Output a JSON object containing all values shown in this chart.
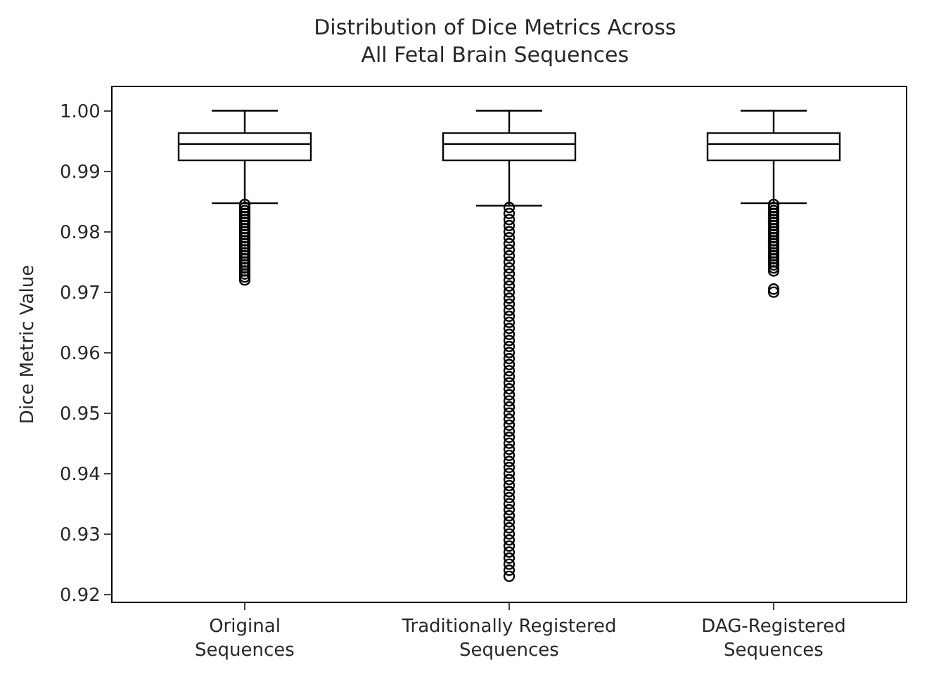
{
  "chart_data": {
    "type": "box",
    "title": "Distribution of Dice Metrics Across\nAll Fetal Brain Sequences",
    "ylabel": "Dice Metric Value",
    "categories": [
      "Original\nSequences",
      "Traditionally Registered\nSequences",
      "DAG-Registered\nSequences"
    ],
    "ylim": [
      0.9188,
      1.0039
    ],
    "yticks": [
      {
        "value": 0.92,
        "label": "0.92"
      },
      {
        "value": 0.93,
        "label": "0.93"
      },
      {
        "value": 0.94,
        "label": "0.94"
      },
      {
        "value": 0.95,
        "label": "0.95"
      },
      {
        "value": 0.96,
        "label": "0.96"
      },
      {
        "value": 0.97,
        "label": "0.97"
      },
      {
        "value": 0.98,
        "label": "0.98"
      },
      {
        "value": 0.99,
        "label": "0.99"
      },
      {
        "value": 1.0,
        "label": "1.00"
      }
    ],
    "marker": "circle",
    "color": "#000000",
    "boxes": [
      {
        "low": 0.9847,
        "q1": 0.9918,
        "median": 0.9945,
        "q3": 0.9963,
        "high": 1.0,
        "outliers": [
          0.9845,
          0.984,
          0.9835,
          0.983,
          0.9825,
          0.982,
          0.9815,
          0.981,
          0.9805,
          0.98,
          0.9795,
          0.979,
          0.9785,
          0.978,
          0.9775,
          0.977,
          0.9765,
          0.976,
          0.9755,
          0.975,
          0.9745,
          0.974,
          0.9735,
          0.973,
          0.9725,
          0.972
        ]
      },
      {
        "low": 0.9843,
        "q1": 0.9918,
        "median": 0.9945,
        "q3": 0.9963,
        "high": 1.0,
        "outliers": [
          0.984,
          0.983,
          0.982,
          0.981,
          0.98,
          0.979,
          0.978,
          0.977,
          0.976,
          0.975,
          0.974,
          0.973,
          0.972,
          0.971,
          0.97,
          0.969,
          0.968,
          0.967,
          0.966,
          0.965,
          0.964,
          0.963,
          0.962,
          0.961,
          0.96,
          0.959,
          0.958,
          0.957,
          0.956,
          0.955,
          0.954,
          0.953,
          0.952,
          0.951,
          0.95,
          0.949,
          0.948,
          0.947,
          0.946,
          0.945,
          0.944,
          0.943,
          0.942,
          0.941,
          0.94,
          0.939,
          0.938,
          0.937,
          0.936,
          0.935,
          0.934,
          0.933,
          0.932,
          0.931,
          0.93,
          0.929,
          0.928,
          0.927,
          0.926,
          0.925,
          0.924,
          0.923
        ]
      },
      {
        "low": 0.9847,
        "q1": 0.9918,
        "median": 0.9945,
        "q3": 0.9963,
        "high": 1.0,
        "outliers": [
          0.9845,
          0.984,
          0.9835,
          0.983,
          0.9825,
          0.982,
          0.9815,
          0.981,
          0.9805,
          0.98,
          0.9795,
          0.979,
          0.9785,
          0.978,
          0.9775,
          0.977,
          0.9765,
          0.976,
          0.9755,
          0.975,
          0.9745,
          0.974,
          0.9735,
          0.9705,
          0.97
        ]
      }
    ]
  }
}
